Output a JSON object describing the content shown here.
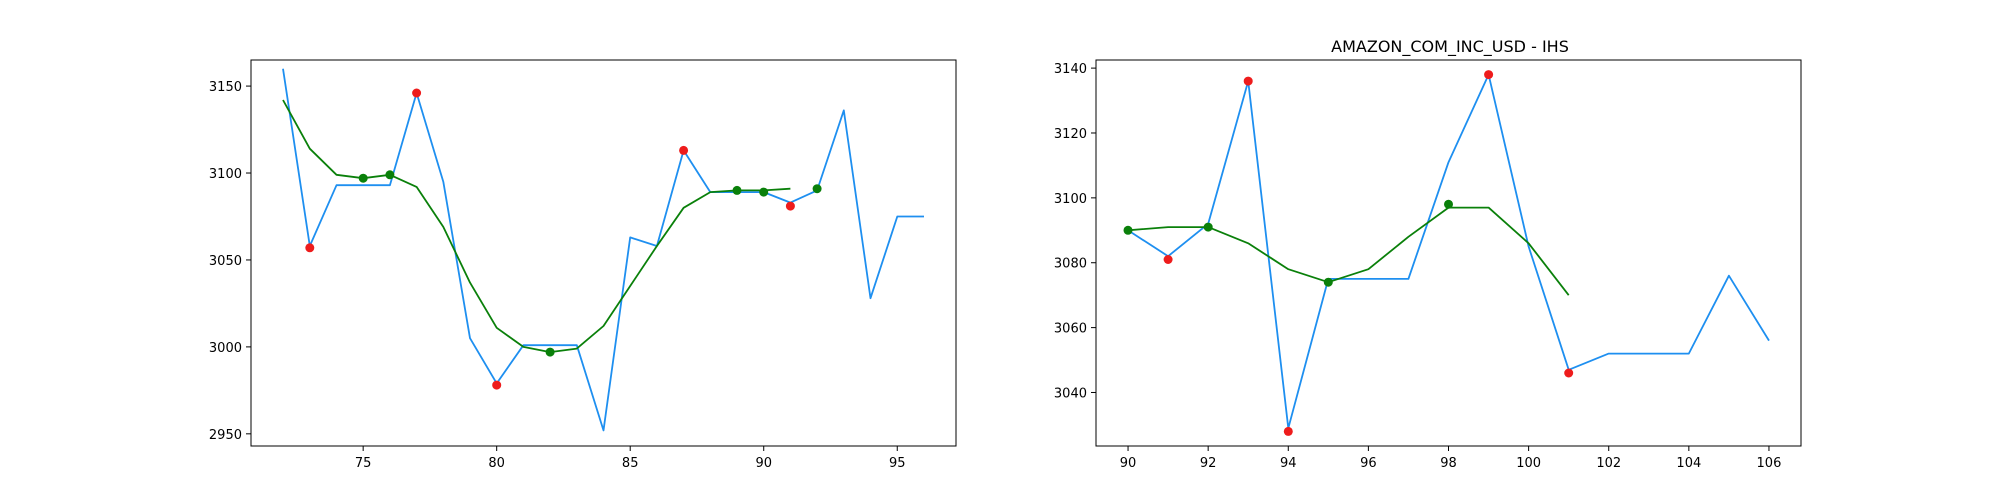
{
  "chart_data": [
    {
      "type": "line",
      "title": "",
      "xlabel": "",
      "ylabel": "",
      "xlim": [
        70.8,
        97.2
      ],
      "ylim": [
        2943,
        3165
      ],
      "xticks": [
        75,
        80,
        85,
        90,
        95
      ],
      "yticks": [
        2950,
        3000,
        3050,
        3100,
        3150
      ],
      "grid": false,
      "legend": "none",
      "colors": {
        "price": "#1e8ff0",
        "smooth": "#0a800a",
        "extrema_red": "#ee1c1c",
        "extrema_green": "#0a800a"
      },
      "series": [
        {
          "type": "line",
          "x": [
            72,
            73,
            74,
            75,
            76,
            77,
            78,
            79,
            80,
            81,
            82,
            83,
            84,
            85,
            86,
            87,
            88,
            89,
            90,
            91,
            92,
            93,
            94,
            95,
            96
          ],
          "y": [
            3160,
            3058,
            3093,
            3093,
            3093,
            3146,
            3095,
            3005,
            2979,
            3001,
            3001,
            3001,
            2952,
            3063,
            3058,
            3113,
            3089,
            3089,
            3089,
            3083,
            3090,
            3136,
            3028,
            3075,
            3075
          ]
        },
        {
          "type": "line",
          "x": [
            72,
            73,
            74,
            75,
            76,
            77,
            78,
            79,
            80,
            81,
            82,
            83,
            84,
            85,
            86,
            87,
            88,
            89,
            90,
            91
          ],
          "y": [
            3142,
            3114,
            3099,
            3097,
            3099,
            3092,
            3069,
            3037,
            3011,
            3000,
            2997,
            2999,
            3012,
            3035,
            3058,
            3080,
            3089,
            3090,
            3090,
            3091
          ]
        },
        {
          "type": "scatter",
          "x": [
            73,
            77,
            80,
            87,
            91
          ],
          "y": [
            3057,
            3146,
            2978,
            3113,
            3081
          ]
        },
        {
          "type": "scatter",
          "x": [
            75,
            76,
            82,
            89,
            90,
            92
          ],
          "y": [
            3097,
            3099,
            2997,
            3090,
            3089,
            3091
          ]
        }
      ]
    },
    {
      "type": "line",
      "title": "AMAZON_COM_INC_USD - IHS",
      "xlabel": "",
      "ylabel": "",
      "xlim": [
        89.2,
        106.8
      ],
      "ylim": [
        3023.5,
        3142.5
      ],
      "xticks": [
        90,
        92,
        94,
        96,
        98,
        100,
        102,
        104,
        106
      ],
      "yticks": [
        3040,
        3060,
        3080,
        3100,
        3120,
        3140
      ],
      "grid": false,
      "legend": "none",
      "colors": {
        "price": "#1e8ff0",
        "smooth": "#0a800a",
        "extrema_red": "#ee1c1c",
        "extrema_green": "#0a800a"
      },
      "series": [
        {
          "type": "line",
          "x": [
            90,
            91,
            92,
            93,
            94,
            95,
            96,
            97,
            98,
            99,
            100,
            101,
            102,
            103,
            104,
            105,
            106
          ],
          "y": [
            3090,
            3082,
            3092,
            3136,
            3029,
            3075,
            3075,
            3075,
            3111,
            3138,
            3085,
            3047,
            3052,
            3052,
            3052,
            3076,
            3056
          ]
        },
        {
          "type": "line",
          "x": [
            90,
            91,
            92,
            93,
            94,
            95,
            96,
            97,
            98,
            99,
            100,
            101
          ],
          "y": [
            3090,
            3091,
            3091,
            3086,
            3078,
            3074,
            3078,
            3088,
            3097,
            3097,
            3086,
            3070
          ]
        },
        {
          "type": "scatter",
          "x": [
            91,
            93,
            94,
            99,
            101
          ],
          "y": [
            3081,
            3136,
            3028,
            3138,
            3046
          ]
        },
        {
          "type": "scatter",
          "x": [
            90,
            92,
            95,
            98
          ],
          "y": [
            3090,
            3091,
            3074,
            3098
          ]
        }
      ]
    }
  ]
}
